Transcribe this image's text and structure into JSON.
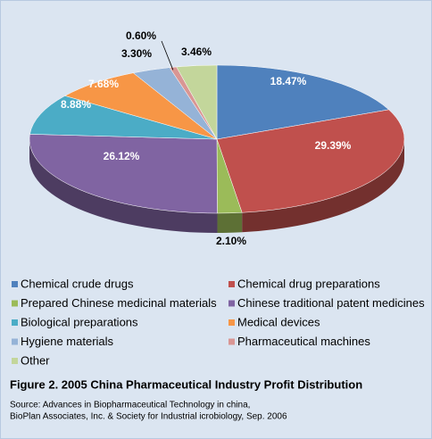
{
  "chart_data": {
    "type": "pie",
    "title": "Figure 2.  2005 China Pharmaceutical Industry Profit Distribution",
    "source": [
      "Source: Advances in Biopharmaceutical Technology in china,",
      "BioPlan Associates, Inc. & Society for Industrial icrobiology, Sep. 2006"
    ],
    "categories": [
      "Chemical crude drugs",
      "Chemical drug preparations",
      "Prepared Chinese medicinal materials",
      "Chinese traditional patent medicines",
      "Biological preparations",
      "Medical devices",
      "Hygiene materials",
      "Pharmaceutical machines",
      "Other"
    ],
    "values": [
      18.47,
      29.39,
      2.1,
      26.12,
      8.88,
      7.68,
      3.3,
      0.6,
      3.46
    ],
    "value_labels": [
      "18.47%",
      "29.39%",
      "2.10%",
      "26.12%",
      "8.88%",
      "7.68%",
      "3.30%",
      "0.60%",
      "3.46%"
    ],
    "colors": [
      "#4f81bd",
      "#c0504d",
      "#9bbb59",
      "#8064a2",
      "#4bacc6",
      "#f79646",
      "#95b3d7",
      "#d99694",
      "#c3d69b"
    ],
    "legend": "bottom"
  }
}
